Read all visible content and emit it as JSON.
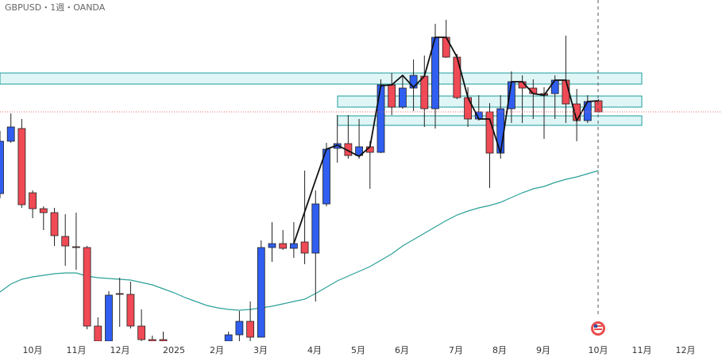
{
  "chart_data": {
    "type": "candlestick",
    "title": "GBPUSD・1週・OANDA",
    "ylim": [
      1.22,
      1.392
    ],
    "up_color": "#2f5ef0",
    "down_color": "#ef4a55",
    "open": [
      1.2944,
      1.3208,
      1.3272,
      1.2948,
      1.2868,
      1.2848,
      1.2728,
      1.2676,
      1.2672,
      1.2276,
      1.22,
      1.244,
      1.2436,
      1.2276,
      1.2208,
      1.2208,
      null,
      null,
      null,
      null,
      null,
      1.22,
      1.2232,
      1.23,
      1.222,
      1.2672,
      1.2692,
      1.2668,
      1.27,
      1.2644,
      1.2892,
      1.3172,
      1.3196,
      1.3136,
      1.318,
      1.3152,
      1.3492,
      1.338,
      1.3476,
      1.3536,
      1.3372,
      1.3732,
      1.3632,
      1.3428,
      1.332,
      1.3356,
      1.3148,
      1.3372,
      1.3508,
      1.3476,
      1.3448,
      1.3448,
      1.3516,
      1.3396,
      1.3312,
      1.3412
    ],
    "high": [
      1.326,
      1.3348,
      1.332,
      1.296,
      1.288,
      1.2872,
      1.284,
      1.2848,
      1.268,
      1.232,
      1.2452,
      1.252,
      1.25,
      1.236,
      1.2228,
      1.2248,
      null,
      null,
      null,
      null,
      null,
      1.2248,
      1.2352,
      1.24,
      1.2708,
      1.28,
      1.276,
      1.28,
      1.306,
      1.296,
      1.32,
      1.334,
      1.334,
      1.332,
      1.3208,
      1.352,
      1.3552,
      1.354,
      1.362,
      1.364,
      1.38,
      1.382,
      1.3648,
      1.348,
      1.344,
      1.34,
      1.344,
      1.356,
      1.354,
      1.352,
      1.348,
      1.354,
      1.374,
      1.3472,
      1.344,
      1.342
    ],
    "low": [
      1.292,
      1.32,
      1.2872,
      1.282,
      1.276,
      1.268,
      1.258,
      1.256,
      1.226,
      1.22,
      1.22,
      1.2272,
      1.2264,
      1.22,
      1.22,
      1.22,
      null,
      null,
      null,
      null,
      null,
      1.22,
      1.22,
      1.22,
      1.222,
      1.26,
      1.266,
      1.262,
      1.2588,
      1.24,
      1.288,
      1.31,
      1.312,
      1.312,
      1.2968,
      1.3148,
      1.334,
      1.3372,
      1.336,
      1.328,
      1.3272,
      1.3628,
      1.342,
      1.328,
      1.3312,
      1.2972,
      1.312,
      1.33,
      1.33,
      1.332,
      1.322,
      1.332,
      1.33,
      1.3208,
      1.33,
      1.3352
    ],
    "close": [
      1.3208,
      1.328,
      1.2888,
      1.2868,
      1.2848,
      1.2732,
      1.268,
      1.2672,
      1.2276,
      1.22,
      1.2432,
      1.2436,
      1.2276,
      1.2208,
      1.22,
      1.22,
      null,
      null,
      null,
      null,
      null,
      1.2232,
      1.23,
      1.222,
      1.2672,
      1.2692,
      1.2668,
      1.2692,
      1.2644,
      1.2892,
      1.3168,
      1.3196,
      1.3136,
      1.318,
      1.3152,
      1.3492,
      1.338,
      1.3476,
      1.354,
      1.3372,
      1.3732,
      1.3632,
      1.3428,
      1.332,
      1.3356,
      1.3148,
      1.3372,
      1.3508,
      1.3476,
      1.3448,
      1.344,
      1.3516,
      1.3396,
      1.3312,
      1.3408,
      1.3356
    ],
    "ma_color": "#2aa198",
    "ma_values": [
      1.2448,
      1.2488,
      1.2512,
      1.2524,
      1.2532,
      1.254,
      1.2544,
      1.2544,
      1.2528,
      1.252,
      1.2516,
      1.2512,
      1.2508,
      1.2496,
      1.2484,
      1.2464,
      1.2444,
      1.242,
      1.24,
      1.238,
      1.2368,
      1.236,
      1.2356,
      1.236,
      1.2368,
      1.2376,
      1.2388,
      1.24,
      1.2412,
      1.244,
      1.2472,
      1.2504,
      1.2528,
      1.2552,
      1.2576,
      1.2608,
      1.264,
      1.268,
      1.2712,
      1.2744,
      1.2776,
      1.2808,
      1.2836,
      1.2856,
      1.2872,
      1.2884,
      1.29,
      1.2924,
      1.2948,
      1.2968,
      1.298,
      1.3,
      1.3016,
      1.3028,
      1.3044,
      1.306
    ],
    "zigzag_color": "#111111",
    "zigzag_values": [
      null,
      null,
      null,
      null,
      null,
      null,
      null,
      null,
      null,
      null,
      null,
      null,
      null,
      null,
      null,
      null,
      null,
      null,
      null,
      null,
      null,
      null,
      null,
      null,
      null,
      null,
      null,
      1.2692,
      1.2852,
      1.3012,
      1.3168,
      1.3188,
      1.316,
      1.3132,
      1.318,
      1.3488,
      1.3492,
      1.354,
      1.348,
      1.3536,
      1.3732,
      1.3732,
      1.3632,
      1.3428,
      1.332,
      1.332,
      1.3148,
      1.3508,
      1.3508,
      1.3448,
      1.344,
      1.3516,
      1.3516,
      1.3312,
      1.3408,
      1.3412
    ],
    "zone_color": "#1e9c9c",
    "zones": [
      [
        1.3496,
        1.3552
      ],
      [
        1.338,
        1.3436
      ],
      [
        1.3288,
        1.3336
      ]
    ],
    "x_labels": [
      "10月",
      "11月",
      "12月",
      "2025",
      "2月",
      "3月",
      "4月",
      "5月",
      "6月",
      "7月",
      "8月",
      "9月",
      "10月",
      "11月",
      "12月"
    ]
  }
}
